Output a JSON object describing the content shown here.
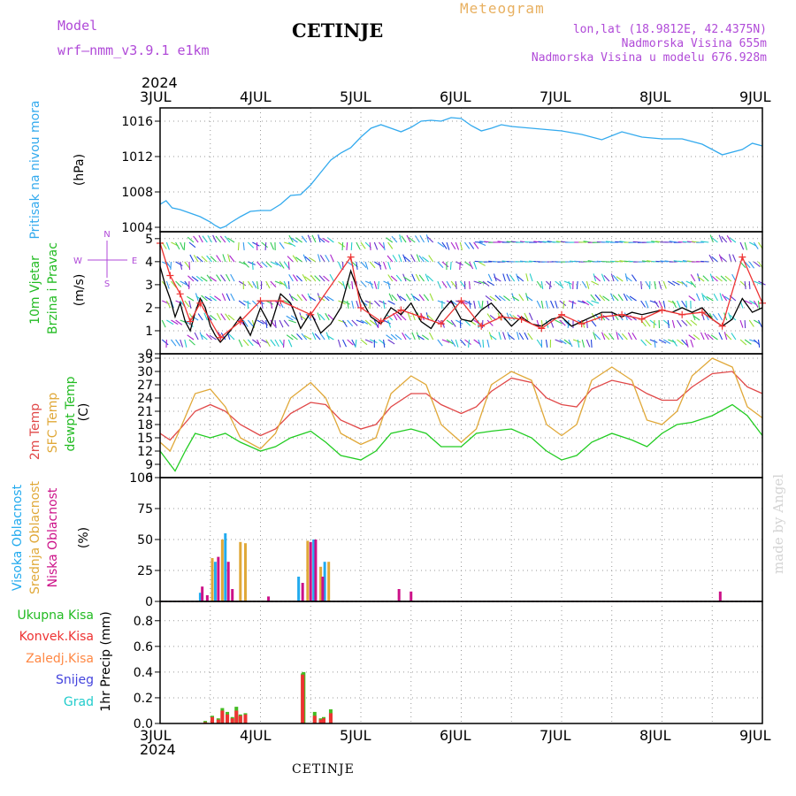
{
  "header": {
    "model_label": "Model",
    "model_name": "wrf–nmm_v3.9.1  e1km",
    "station": "CETINJE",
    "meteogram_label": "Meteogram",
    "lonlat": "lon,lat (18.9812E, 42.4375N)",
    "altitude": "Nadmorska Visina 655m",
    "model_altitude": "Nadmorska Visina u modelu 676.928m",
    "year_top": "2024",
    "year_bottom": "2024",
    "station_bottom": "CETINJE",
    "credit": "made by Angel"
  },
  "x_axis": {
    "ticks": [
      "3JUL",
      "4JUL",
      "5JUL",
      "6JUL",
      "7JUL",
      "8JUL",
      "9JUL"
    ]
  },
  "panels": {
    "pressure": {
      "label": "Pritisak na nivou mora",
      "unit": "(hPa)"
    },
    "wind": {
      "speed_label": "10m Vjetar",
      "dir_label": "Brzina i Pravac",
      "unit": "(m/s)",
      "compass_n": "N",
      "compass_e": "E",
      "compass_w": "W",
      "compass_s": "S"
    },
    "temp": {
      "label_2m": "2m Temp",
      "label_sfc": "SFC Temp",
      "label_dew": "dewpt Temp",
      "unit": "(C)"
    },
    "cloud": {
      "label_high": "Visoka Oblacnost",
      "label_mid": "Srednja Oblacnost",
      "label_low": "Niska Oblacnost",
      "unit": "(%)"
    },
    "precip": {
      "label_total": "Ukupna Kisa",
      "label_conv": "Konvek.Kisa",
      "label_frz": "Zaledj.Kisa",
      "label_snow": "Snijeg",
      "label_graupel": "Grad",
      "unit": "1hr Precip (mm)"
    }
  },
  "colors": {
    "pressure": "#33aaee",
    "wind_speed": "#000000",
    "wind_gust": "#ee3333",
    "temp_2m": "#e04848",
    "temp_sfc": "#e0a838",
    "temp_dew": "#22cc22",
    "cloud_high": "#22aaee",
    "cloud_mid": "#e0a838",
    "cloud_low": "#cc1188",
    "precip_total": "#44bb22",
    "precip_conv": "#ee3333",
    "precip_frz": "#ff8844",
    "precip_snow": "#4444dd",
    "precip_graupel": "#22cccc"
  },
  "chart_data": [
    {
      "type": "line",
      "name": "pressure",
      "x_unit": "days since 3JUL 00UTC",
      "ylim": [
        1003.5,
        1017.5
      ],
      "yticks": [
        1004,
        1008,
        1012,
        1016
      ],
      "series": [
        {
          "name": "Pritisak na nivou mora",
          "x": [
            0,
            0.06,
            0.12,
            0.2,
            0.3,
            0.4,
            0.5,
            0.55,
            0.6,
            0.65,
            0.7,
            0.8,
            0.9,
            1.0,
            1.1,
            1.2,
            1.3,
            1.4,
            1.5,
            1.6,
            1.7,
            1.8,
            1.9,
            2.0,
            2.1,
            2.2,
            2.3,
            2.4,
            2.5,
            2.6,
            2.7,
            2.8,
            2.9,
            3.0,
            3.1,
            3.2,
            3.3,
            3.4,
            3.5,
            3.6,
            3.7,
            3.8,
            4.0,
            4.2,
            4.4,
            4.6,
            4.8,
            5.0,
            5.2,
            5.4,
            5.6,
            5.8,
            5.9,
            6.0
          ],
          "y": [
            1006.6,
            1007.0,
            1006.2,
            1006.0,
            1005.6,
            1005.2,
            1004.6,
            1004.2,
            1003.9,
            1004.1,
            1004.5,
            1005.2,
            1005.8,
            1005.9,
            1005.9,
            1006.6,
            1007.6,
            1007.7,
            1008.8,
            1010.2,
            1011.6,
            1012.4,
            1013.0,
            1014.2,
            1015.2,
            1015.6,
            1015.2,
            1014.8,
            1015.3,
            1016.0,
            1016.1,
            1016.0,
            1016.4,
            1016.3,
            1015.5,
            1014.9,
            1015.2,
            1015.6,
            1015.4,
            1015.3,
            1015.2,
            1015.1,
            1014.9,
            1014.5,
            1013.9,
            1014.8,
            1014.2,
            1014.0,
            1014.0,
            1013.4,
            1012.2,
            1012.8,
            1013.5,
            1013.2
          ]
        }
      ]
    },
    {
      "type": "line",
      "name": "wind",
      "x_unit": "days since 3JUL 00UTC",
      "ylim": [
        0,
        5.3
      ],
      "yticks": [
        0,
        1,
        2,
        3,
        4,
        5
      ],
      "series": [
        {
          "name": "Brzina",
          "x": [
            0,
            0.05,
            0.1,
            0.15,
            0.2,
            0.25,
            0.3,
            0.35,
            0.4,
            0.45,
            0.5,
            0.55,
            0.6,
            0.7,
            0.8,
            0.9,
            1.0,
            1.1,
            1.2,
            1.3,
            1.4,
            1.5,
            1.6,
            1.7,
            1.8,
            1.9,
            2.0,
            2.1,
            2.2,
            2.3,
            2.4,
            2.5,
            2.6,
            2.7,
            2.8,
            2.9,
            3.0,
            3.1,
            3.2,
            3.3,
            3.4,
            3.5,
            3.6,
            3.7,
            3.8,
            3.9,
            4.0,
            4.1,
            4.2,
            4.3,
            4.4,
            4.5,
            4.6,
            4.7,
            4.8,
            4.9,
            5.0,
            5.1,
            5.2,
            5.3,
            5.4,
            5.5,
            5.6,
            5.7,
            5.8,
            5.9,
            6.0
          ],
          "y": [
            3.8,
            3.0,
            2.4,
            1.6,
            2.2,
            1.4,
            1.0,
            1.8,
            2.4,
            2.0,
            1.2,
            0.8,
            0.5,
            1.0,
            1.6,
            0.8,
            2.0,
            1.2,
            2.6,
            2.2,
            1.1,
            1.8,
            0.9,
            1.3,
            2.0,
            3.6,
            2.4,
            1.6,
            1.3,
            2.0,
            1.7,
            2.2,
            1.4,
            1.1,
            1.8,
            2.3,
            1.5,
            1.4,
            1.9,
            2.2,
            1.7,
            1.2,
            1.6,
            1.3,
            1.2,
            1.5,
            1.6,
            1.2,
            1.4,
            1.6,
            1.8,
            1.8,
            1.6,
            1.8,
            1.7,
            1.8,
            1.9,
            1.8,
            2.0,
            1.8,
            2.0,
            1.5,
            1.2,
            1.5,
            2.4,
            1.8,
            2.0
          ]
        },
        {
          "name": "Udari",
          "x": [
            0,
            0.1,
            0.2,
            0.3,
            0.4,
            0.6,
            0.8,
            1.0,
            1.2,
            1.5,
            1.9,
            2.0,
            2.2,
            2.4,
            2.6,
            2.8,
            3.0,
            3.2,
            3.4,
            3.6,
            3.8,
            4.0,
            4.2,
            4.4,
            4.6,
            4.8,
            5.0,
            5.2,
            5.4,
            5.6,
            5.8,
            6.0
          ],
          "y": [
            4.8,
            3.4,
            2.6,
            1.4,
            2.2,
            0.7,
            1.4,
            2.3,
            2.3,
            1.7,
            4.2,
            2.0,
            1.4,
            1.9,
            1.6,
            1.3,
            2.3,
            1.2,
            1.6,
            1.5,
            1.1,
            1.7,
            1.3,
            1.6,
            1.7,
            1.5,
            1.9,
            1.7,
            1.8,
            1.2,
            4.2,
            2.2
          ]
        }
      ]
    },
    {
      "type": "line",
      "name": "temperature",
      "x_unit": "days since 3JUL 00UTC",
      "ylim": [
        6,
        34
      ],
      "yticks": [
        6,
        9,
        12,
        15,
        18,
        21,
        24,
        27,
        30,
        33
      ],
      "series": [
        {
          "name": "2m Temp",
          "x": [
            0,
            0.1,
            0.2,
            0.35,
            0.5,
            0.65,
            0.8,
            1.0,
            1.15,
            1.3,
            1.5,
            1.65,
            1.8,
            2.0,
            2.15,
            2.3,
            2.5,
            2.65,
            2.8,
            3.0,
            3.15,
            3.3,
            3.5,
            3.7,
            3.85,
            4.0,
            4.15,
            4.3,
            4.5,
            4.7,
            4.85,
            5.0,
            5.15,
            5.3,
            5.5,
            5.7,
            5.85,
            6.0
          ],
          "y": [
            16,
            14.5,
            17,
            21,
            22.5,
            21,
            18,
            15.5,
            17,
            20.5,
            23,
            22.5,
            19,
            17,
            18,
            22,
            25,
            25,
            22.5,
            20.5,
            22,
            25.5,
            28.5,
            27.5,
            24,
            22.5,
            22,
            26,
            28,
            27,
            25,
            23.5,
            23.5,
            26.5,
            29.5,
            30,
            26.5,
            25
          ]
        },
        {
          "name": "SFC Temp",
          "x": [
            0,
            0.1,
            0.2,
            0.35,
            0.5,
            0.65,
            0.8,
            1.0,
            1.15,
            1.3,
            1.5,
            1.65,
            1.8,
            2.0,
            2.15,
            2.3,
            2.5,
            2.65,
            2.8,
            3.0,
            3.15,
            3.3,
            3.5,
            3.7,
            3.85,
            4.0,
            4.15,
            4.3,
            4.5,
            4.7,
            4.85,
            5.0,
            5.15,
            5.3,
            5.5,
            5.7,
            5.85,
            6.0
          ],
          "y": [
            14,
            12,
            17,
            25,
            26,
            22,
            15,
            12.5,
            16,
            24,
            27.5,
            24,
            16,
            13.5,
            15,
            25,
            29,
            27,
            18,
            14,
            17,
            27,
            30,
            28,
            18,
            15.5,
            18,
            28,
            31,
            28,
            19,
            18,
            21,
            29,
            33,
            31,
            22,
            19.5
          ]
        },
        {
          "name": "dewpt Temp",
          "x": [
            0,
            0.1,
            0.15,
            0.25,
            0.35,
            0.5,
            0.65,
            0.8,
            1.0,
            1.15,
            1.3,
            1.5,
            1.65,
            1.8,
            2.0,
            2.15,
            2.3,
            2.5,
            2.65,
            2.8,
            3.0,
            3.15,
            3.3,
            3.5,
            3.7,
            3.85,
            4.0,
            4.15,
            4.3,
            4.5,
            4.7,
            4.85,
            5.0,
            5.15,
            5.3,
            5.5,
            5.7,
            5.85,
            6.0
          ],
          "y": [
            12,
            9,
            7.5,
            12,
            16,
            15,
            16,
            14,
            12,
            13,
            15,
            16.5,
            14,
            11,
            10,
            12,
            16,
            17,
            16,
            13,
            13,
            16,
            16.5,
            17,
            15,
            12,
            10,
            11,
            14,
            16,
            14.5,
            13,
            16,
            18,
            18.5,
            20,
            22.5,
            20,
            15.5
          ]
        }
      ]
    },
    {
      "type": "bar",
      "name": "cloud",
      "x_unit": "days since 3JUL 00UTC",
      "ylim": [
        0,
        100
      ],
      "yticks": [
        0,
        25,
        50,
        75,
        100
      ],
      "series": [
        {
          "name": "Visoka Oblacnost",
          "x": [
            0.4,
            0.55,
            0.65,
            1.38,
            1.53,
            1.64
          ],
          "values": [
            7,
            32,
            55,
            20,
            50,
            32
          ]
        },
        {
          "name": "Srednja Oblacnost",
          "x": [
            0.52,
            0.62,
            0.8,
            0.85,
            1.47,
            1.6,
            1.68
          ],
          "values": [
            35,
            50,
            48,
            47,
            49,
            28,
            32
          ]
        },
        {
          "name": "Niska Oblacnost",
          "x": [
            0.42,
            0.47,
            0.58,
            0.68,
            0.72,
            1.08,
            1.42,
            1.5,
            1.55,
            1.62,
            2.38,
            2.5,
            5.58
          ],
          "values": [
            12,
            5,
            36,
            32,
            10,
            4,
            15,
            48,
            50,
            20,
            10,
            8,
            8
          ]
        }
      ]
    },
    {
      "type": "bar",
      "name": "precipitation",
      "x_unit": "days since 3JUL 00UTC",
      "ylim": [
        0,
        0.95
      ],
      "yticks": [
        0.0,
        0.2,
        0.4,
        0.6,
        0.8
      ],
      "series": [
        {
          "name": "Ukupna Kisa",
          "x": [
            0.45,
            0.52,
            0.58,
            0.62,
            0.67,
            0.72,
            0.76,
            0.8,
            0.85,
            1.42,
            1.43,
            1.54,
            1.6,
            1.63,
            1.7
          ],
          "values": [
            0.02,
            0.06,
            0.04,
            0.12,
            0.09,
            0.05,
            0.13,
            0.07,
            0.08,
            0.39,
            0.4,
            0.09,
            0.04,
            0.05,
            0.11
          ]
        },
        {
          "name": "Konvek.Kisa",
          "x": [
            0.45,
            0.52,
            0.58,
            0.62,
            0.67,
            0.72,
            0.76,
            0.8,
            0.85,
            1.42,
            1.54,
            1.6,
            1.63,
            1.7
          ],
          "values": [
            0.01,
            0.05,
            0.03,
            0.1,
            0.07,
            0.04,
            0.1,
            0.06,
            0.07,
            0.38,
            0.06,
            0.03,
            0.04,
            0.08
          ]
        }
      ]
    }
  ]
}
